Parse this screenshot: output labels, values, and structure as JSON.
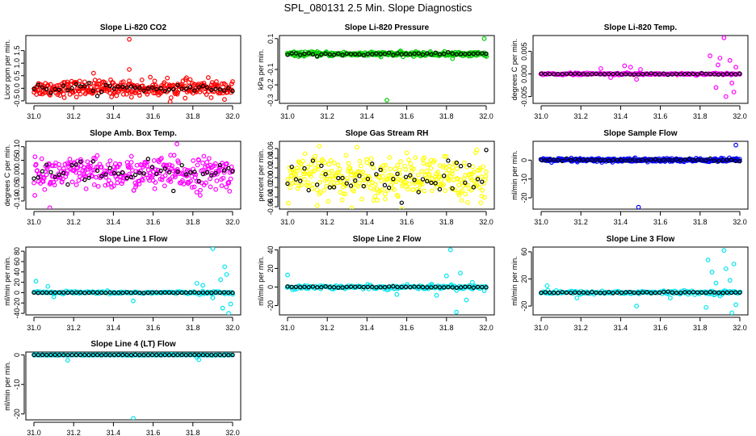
{
  "figure": {
    "title": "SPL_080131  2.5 Min. Slope Diagnostics"
  },
  "chart_data": [
    {
      "type": "scatter",
      "title": "Slope Li-820 CO2",
      "ylabel": "Licor ppm per min.",
      "xlim": [
        31.0,
        32.0
      ],
      "ylim": [
        -0.6,
        2.1
      ],
      "xticks": [
        "31.0",
        "31.2",
        "31.4",
        "31.6",
        "31.8",
        "32.0"
      ],
      "yticks": [
        {
          "v": -0.5,
          "label": "-0.5"
        },
        {
          "v": 0.0,
          "label": "0.0"
        },
        {
          "v": 0.5,
          "label": "0.5"
        },
        {
          "v": 1.0,
          "label": "1.0"
        },
        {
          "v": 1.5,
          "label": "1.5"
        }
      ],
      "color": "#ff0000",
      "noise": {
        "center": 0.0,
        "spread": 0.28,
        "n": 340
      },
      "black_spread": 0.15,
      "outliers": [
        {
          "x": 31.48,
          "y": 1.95
        },
        {
          "x": 31.48,
          "y": 0.75
        },
        {
          "x": 31.3,
          "y": 0.6
        }
      ]
    },
    {
      "type": "scatter",
      "title": "Slope Li-820 Pressure",
      "ylabel": "kPa per min.",
      "xlim": [
        31.0,
        32.0
      ],
      "ylim": [
        -0.32,
        0.12
      ],
      "xticks": [
        "31.0",
        "31.2",
        "31.4",
        "31.6",
        "31.8",
        "32.0"
      ],
      "yticks": [
        {
          "v": -0.3,
          "label": "-0.3"
        },
        {
          "v": -0.2,
          "label": "-0.2"
        },
        {
          "v": -0.1,
          "label": "-0.1"
        },
        {
          "v": 0.1,
          "label": "0.1"
        }
      ],
      "color": "#00cc00",
      "noise": {
        "center": 0.0,
        "spread": 0.012,
        "n": 320
      },
      "black_spread": 0.006,
      "outliers": [
        {
          "x": 31.5,
          "y": -0.3
        },
        {
          "x": 31.99,
          "y": 0.1
        },
        {
          "x": 31.83,
          "y": -0.03
        }
      ]
    },
    {
      "type": "scatter",
      "title": "Slope Li-820 Temp.",
      "ylabel": "degrees C per min.",
      "xlim": [
        31.0,
        32.0
      ],
      "ylim": [
        -0.0065,
        0.0085
      ],
      "xticks": [
        "31.0",
        "31.2",
        "31.4",
        "31.6",
        "31.8",
        "32.0"
      ],
      "yticks": [
        {
          "v": -0.005,
          "label": "-0.005"
        },
        {
          "v": 0.0,
          "label": "0.000"
        },
        {
          "v": 0.005,
          "label": "0.005"
        }
      ],
      "color": "#ff00ff",
      "noise": {
        "center": 0.0,
        "spread": 0.0002,
        "n": 200
      },
      "black_spread": 0.0001,
      "outliers": [
        {
          "x": 31.3,
          "y": 0.0012
        },
        {
          "x": 31.35,
          "y": -0.0008
        },
        {
          "x": 31.45,
          "y": 0.0015
        },
        {
          "x": 31.48,
          "y": -0.0012
        },
        {
          "x": 31.5,
          "y": 0.001
        },
        {
          "x": 31.42,
          "y": 0.0018
        },
        {
          "x": 31.85,
          "y": 0.004
        },
        {
          "x": 31.88,
          "y": -0.003
        },
        {
          "x": 31.9,
          "y": 0.0035
        },
        {
          "x": 31.92,
          "y": 0.008
        },
        {
          "x": 31.93,
          "y": -0.005
        },
        {
          "x": 31.95,
          "y": 0.003
        },
        {
          "x": 31.97,
          "y": -0.004
        },
        {
          "x": 31.98,
          "y": 0.0015
        },
        {
          "x": 31.96,
          "y": -0.002
        },
        {
          "x": 31.89,
          "y": 0.002
        }
      ]
    },
    {
      "type": "scatter",
      "title": "Slope Amb. Box Temp.",
      "ylabel": "degrees C per min.",
      "xlim": [
        31.0,
        32.0
      ],
      "ylim": [
        -0.13,
        0.12
      ],
      "xticks": [
        "31.0",
        "31.2",
        "31.4",
        "31.6",
        "31.8",
        "32.0"
      ],
      "yticks": [
        {
          "v": -0.1,
          "label": "-0.10"
        },
        {
          "v": -0.05,
          "label": "-0.05"
        },
        {
          "v": 0.0,
          "label": "0.00"
        },
        {
          "v": 0.05,
          "label": "0.05"
        },
        {
          "v": 0.1,
          "label": "0.10"
        }
      ],
      "color": "#ff00ff",
      "noise": {
        "center": 0.0,
        "spread": 0.055,
        "n": 330
      },
      "black_spread": 0.035,
      "outliers": [
        {
          "x": 31.72,
          "y": 0.11
        },
        {
          "x": 31.08,
          "y": -0.125
        }
      ]
    },
    {
      "type": "scatter",
      "title": "Slope Gas Stream RH",
      "ylabel": "percent per min.",
      "xlim": [
        31.0,
        32.0
      ],
      "ylim": [
        -0.065,
        0.075
      ],
      "xticks": [
        "31.0",
        "31.2",
        "31.4",
        "31.6",
        "31.8",
        "32.0"
      ],
      "yticks": [
        {
          "v": -0.06,
          "label": "-0.06"
        },
        {
          "v": -0.04,
          "label": "-0.04"
        },
        {
          "v": -0.02,
          "label": "-0.02"
        },
        {
          "v": 0.0,
          "label": "0.00"
        },
        {
          "v": 0.02,
          "label": "0.02"
        },
        {
          "v": 0.04,
          "label": "0.04"
        },
        {
          "v": 0.06,
          "label": "0.06"
        }
      ],
      "color": "#ffff00",
      "noise": {
        "center": 0.0,
        "spread": 0.04,
        "n": 330
      },
      "black_spread": 0.035,
      "outliers": [
        {
          "x": 31.16,
          "y": 0.065
        },
        {
          "x": 31.35,
          "y": 0.063
        }
      ]
    },
    {
      "type": "scatter",
      "title": "Slope Sample Flow",
      "ylabel": "ml/min per min.",
      "xlim": [
        31.0,
        32.0
      ],
      "ylim": [
        -26,
        10
      ],
      "xticks": [
        "31.0",
        "31.2",
        "31.4",
        "31.6",
        "31.8",
        "32.0"
      ],
      "yticks": [
        {
          "v": -20,
          "label": "-20"
        },
        {
          "v": -10,
          "label": "-10"
        },
        {
          "v": 0,
          "label": "0"
        }
      ],
      "color": "#0000ff",
      "noise": {
        "center": 0.0,
        "spread": 0.9,
        "n": 320
      },
      "black_spread": 0.5,
      "outliers": [
        {
          "x": 31.49,
          "y": -25
        },
        {
          "x": 31.98,
          "y": 8
        }
      ]
    },
    {
      "type": "scatter",
      "title": "Slope Line 1 Flow",
      "ylabel": "ml/min per min.",
      "xlim": [
        31.0,
        32.0
      ],
      "ylim": [
        -43,
        88
      ],
      "xticks": [
        "31.0",
        "31.2",
        "31.4",
        "31.6",
        "31.8",
        "32.0"
      ],
      "yticks": [
        {
          "v": -40,
          "label": "-40"
        },
        {
          "v": -20,
          "label": "-20"
        },
        {
          "v": 0,
          "label": "0"
        },
        {
          "v": 20,
          "label": "20"
        },
        {
          "v": 40,
          "label": "40"
        },
        {
          "v": 60,
          "label": "60"
        },
        {
          "v": 80,
          "label": "80"
        }
      ],
      "color": "#00e5ee",
      "noise": {
        "center": 0.0,
        "spread": 2.2,
        "n": 180
      },
      "black_spread": 0.5,
      "outliers": [
        {
          "x": 31.01,
          "y": 22
        },
        {
          "x": 31.07,
          "y": 12
        },
        {
          "x": 31.1,
          "y": -8
        },
        {
          "x": 31.5,
          "y": -16
        },
        {
          "x": 31.82,
          "y": 18
        },
        {
          "x": 31.85,
          "y": 14
        },
        {
          "x": 31.9,
          "y": 85
        },
        {
          "x": 31.9,
          "y": -10
        },
        {
          "x": 31.94,
          "y": 25
        },
        {
          "x": 31.96,
          "y": 50
        },
        {
          "x": 31.97,
          "y": 35
        },
        {
          "x": 31.98,
          "y": -40
        },
        {
          "x": 31.99,
          "y": -22
        },
        {
          "x": 31.95,
          "y": -30
        }
      ]
    },
    {
      "type": "scatter",
      "title": "Slope Line 2 Flow",
      "ylabel": "ml/min per min.",
      "xlim": [
        31.0,
        32.0
      ],
      "ylim": [
        -30,
        43
      ],
      "xticks": [
        "31.0",
        "31.2",
        "31.4",
        "31.6",
        "31.8",
        "32.0"
      ],
      "yticks": [
        {
          "v": -20,
          "label": "-20"
        },
        {
          "v": 0,
          "label": "0"
        },
        {
          "v": 20,
          "label": "20"
        },
        {
          "v": 40,
          "label": "40"
        }
      ],
      "color": "#00e5ee",
      "noise": {
        "center": 0.0,
        "spread": 2.0,
        "n": 190
      },
      "black_spread": 0.6,
      "outliers": [
        {
          "x": 31.0,
          "y": 13
        },
        {
          "x": 31.55,
          "y": -8
        },
        {
          "x": 31.8,
          "y": 12
        },
        {
          "x": 31.82,
          "y": 40
        },
        {
          "x": 31.85,
          "y": -27
        },
        {
          "x": 31.87,
          "y": 15
        },
        {
          "x": 31.9,
          "y": -14
        },
        {
          "x": 31.75,
          "y": -9
        },
        {
          "x": 31.93,
          "y": 5
        },
        {
          "x": 31.99,
          "y": -4
        }
      ]
    },
    {
      "type": "scatter",
      "title": "Slope Line 3 Flow",
      "ylabel": "ml/min per min.",
      "xlim": [
        31.0,
        32.0
      ],
      "ylim": [
        -33,
        67
      ],
      "xticks": [
        "31.0",
        "31.2",
        "31.4",
        "31.6",
        "31.8",
        "32.0"
      ],
      "yticks": [
        {
          "v": -20,
          "label": "-20"
        },
        {
          "v": 20,
          "label": "20"
        },
        {
          "v": 60,
          "label": "60"
        }
      ],
      "color": "#00e5ee",
      "noise": {
        "center": 0.0,
        "spread": 2.2,
        "n": 200
      },
      "black_spread": 0.8,
      "outliers": [
        {
          "x": 31.03,
          "y": 10
        },
        {
          "x": 31.18,
          "y": -8
        },
        {
          "x": 31.48,
          "y": -20
        },
        {
          "x": 31.65,
          "y": -8
        },
        {
          "x": 31.84,
          "y": 48
        },
        {
          "x": 31.86,
          "y": 30
        },
        {
          "x": 31.88,
          "y": 14
        },
        {
          "x": 31.9,
          "y": -5
        },
        {
          "x": 31.92,
          "y": 62
        },
        {
          "x": 31.93,
          "y": 35
        },
        {
          "x": 31.95,
          "y": 18
        },
        {
          "x": 31.97,
          "y": 42
        },
        {
          "x": 31.96,
          "y": -30
        },
        {
          "x": 31.98,
          "y": -18
        },
        {
          "x": 31.83,
          "y": -22
        }
      ]
    },
    {
      "type": "scatter",
      "title": "Slope Line 4 (LT) Flow",
      "ylabel": "ml/min per min.",
      "xlim": [
        31.0,
        32.0
      ],
      "ylim": [
        -22,
        1
      ],
      "xticks": [
        "31.0",
        "31.2",
        "31.4",
        "31.6",
        "31.8",
        "32.0"
      ],
      "yticks": [
        {
          "v": -20,
          "label": "-20"
        },
        {
          "v": -10,
          "label": "-10"
        },
        {
          "v": 0,
          "label": "0"
        }
      ],
      "color": "#00e5ee",
      "noise": {
        "center": 0.0,
        "spread": 0.12,
        "n": 170
      },
      "black_spread": 0.05,
      "outliers": [
        {
          "x": 31.17,
          "y": -1.8
        },
        {
          "x": 31.5,
          "y": -21.5
        },
        {
          "x": 31.83,
          "y": -1.6
        },
        {
          "x": 31.82,
          "y": -0.8
        }
      ]
    }
  ]
}
